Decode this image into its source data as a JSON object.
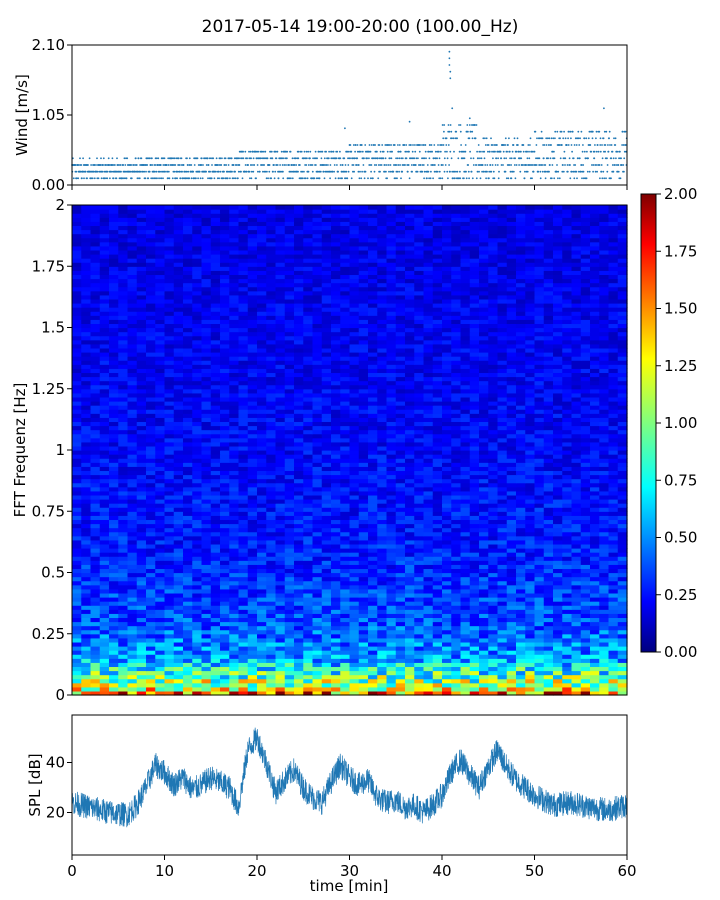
{
  "figure": {
    "title": "2017-05-14 19:00-20:00 (100.00_Hz)"
  },
  "chart_data": [
    {
      "type": "scatter",
      "ylabel": "Wind [m/s]",
      "xlabel": "",
      "xlim": [
        0,
        60
      ],
      "ylim": [
        0,
        2.1
      ],
      "yticks": [
        "0.00",
        "1.05",
        "2.10"
      ],
      "marker_color": "#1f77b4",
      "quantization_step": 0.1,
      "segments": [
        {
          "from": 0,
          "to": 8,
          "base": 0.18,
          "spread": 0.3
        },
        {
          "from": 8,
          "to": 18,
          "base": 0.2,
          "spread": 0.35
        },
        {
          "from": 18,
          "to": 30,
          "base": 0.25,
          "spread": 0.45
        },
        {
          "from": 30,
          "to": 40,
          "base": 0.3,
          "spread": 0.55
        },
        {
          "from": 40,
          "to": 44,
          "base": 0.35,
          "spread": 0.9
        },
        {
          "from": 44,
          "to": 50,
          "base": 0.3,
          "spread": 0.6
        },
        {
          "from": 50,
          "to": 60,
          "base": 0.35,
          "spread": 0.7
        }
      ],
      "peaks": [
        {
          "x": 40.8,
          "y": 2.0
        },
        {
          "x": 40.8,
          "y": 1.9
        },
        {
          "x": 40.8,
          "y": 1.8
        },
        {
          "x": 40.9,
          "y": 1.7
        },
        {
          "x": 40.9,
          "y": 1.6
        },
        {
          "x": 41.1,
          "y": 1.15
        },
        {
          "x": 43.0,
          "y": 1.0
        },
        {
          "x": 57.5,
          "y": 1.15
        },
        {
          "x": 36.5,
          "y": 0.95
        },
        {
          "x": 29.5,
          "y": 0.85
        }
      ]
    },
    {
      "type": "heatmap",
      "ylabel": "FFT Frequenz [Hz]",
      "xlim": [
        0,
        60
      ],
      "ylim": [
        0,
        2
      ],
      "yticks": [
        "0",
        "0.25",
        "0.5",
        "0.75",
        "1",
        "1.25",
        "1.5",
        "1.75",
        "2"
      ],
      "colorbar": {
        "range": [
          0,
          2
        ],
        "ticks": [
          "0.00",
          "0.25",
          "0.50",
          "0.75",
          "1.00",
          "1.25",
          "1.50",
          "1.75",
          "2.00"
        ],
        "colormap": "jet"
      },
      "intensity_profile": [
        {
          "freq": 0.0,
          "level": 1.8
        },
        {
          "freq": 0.03,
          "level": 1.2
        },
        {
          "freq": 0.08,
          "level": 0.9
        },
        {
          "freq": 0.15,
          "level": 0.55
        },
        {
          "freq": 0.3,
          "level": 0.4
        },
        {
          "freq": 0.6,
          "level": 0.3
        },
        {
          "freq": 1.0,
          "level": 0.25
        },
        {
          "freq": 2.0,
          "level": 0.2
        }
      ]
    },
    {
      "type": "line",
      "xlabel": "time [min]",
      "ylabel": "SPL [dB]",
      "xlim": [
        0,
        60
      ],
      "ylim": [
        3,
        59
      ],
      "xticks": [
        "0",
        "10",
        "20",
        "30",
        "40",
        "50",
        "60"
      ],
      "yticks": [
        "20",
        "40"
      ],
      "line_color": "#1f77b4",
      "envelope": [
        {
          "x": 0,
          "y": 24
        },
        {
          "x": 2,
          "y": 22
        },
        {
          "x": 4,
          "y": 20
        },
        {
          "x": 6,
          "y": 19
        },
        {
          "x": 7,
          "y": 23
        },
        {
          "x": 8,
          "y": 30
        },
        {
          "x": 9,
          "y": 39
        },
        {
          "x": 10,
          "y": 36
        },
        {
          "x": 11,
          "y": 31
        },
        {
          "x": 12,
          "y": 34
        },
        {
          "x": 13,
          "y": 29
        },
        {
          "x": 14,
          "y": 31
        },
        {
          "x": 15,
          "y": 34
        },
        {
          "x": 16,
          "y": 32
        },
        {
          "x": 17,
          "y": 30
        },
        {
          "x": 18,
          "y": 22
        },
        {
          "x": 19,
          "y": 45
        },
        {
          "x": 20,
          "y": 50
        },
        {
          "x": 21,
          "y": 40
        },
        {
          "x": 22,
          "y": 28
        },
        {
          "x": 23,
          "y": 33
        },
        {
          "x": 24,
          "y": 37
        },
        {
          "x": 25,
          "y": 30
        },
        {
          "x": 26,
          "y": 26
        },
        {
          "x": 27,
          "y": 24
        },
        {
          "x": 28,
          "y": 32
        },
        {
          "x": 29,
          "y": 39
        },
        {
          "x": 30,
          "y": 34
        },
        {
          "x": 31,
          "y": 31
        },
        {
          "x": 32,
          "y": 33
        },
        {
          "x": 33,
          "y": 26
        },
        {
          "x": 34,
          "y": 24
        },
        {
          "x": 35,
          "y": 25
        },
        {
          "x": 36,
          "y": 22
        },
        {
          "x": 37,
          "y": 23
        },
        {
          "x": 38,
          "y": 20
        },
        {
          "x": 39,
          "y": 23
        },
        {
          "x": 40,
          "y": 27
        },
        {
          "x": 41,
          "y": 36
        },
        {
          "x": 42,
          "y": 41
        },
        {
          "x": 43,
          "y": 35
        },
        {
          "x": 44,
          "y": 30
        },
        {
          "x": 45,
          "y": 38
        },
        {
          "x": 46,
          "y": 45
        },
        {
          "x": 47,
          "y": 38
        },
        {
          "x": 48,
          "y": 33
        },
        {
          "x": 49,
          "y": 30
        },
        {
          "x": 50,
          "y": 27
        },
        {
          "x": 52,
          "y": 23
        },
        {
          "x": 54,
          "y": 24
        },
        {
          "x": 56,
          "y": 22
        },
        {
          "x": 58,
          "y": 21
        },
        {
          "x": 60,
          "y": 23
        }
      ],
      "noise_amplitude": 5
    }
  ]
}
